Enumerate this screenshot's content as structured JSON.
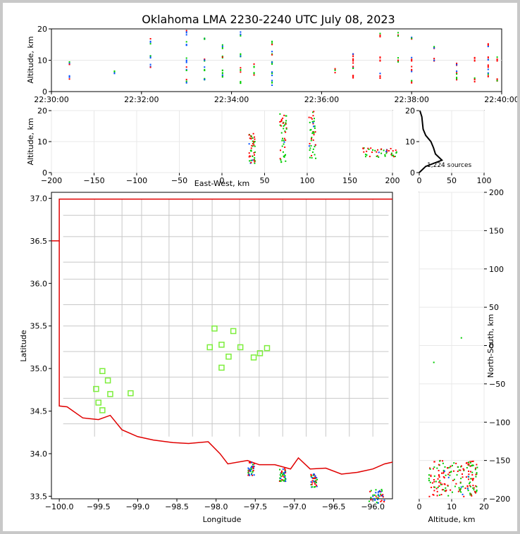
{
  "title": "Oklahoma LMA 2230-2240 UTC July 08, 2023",
  "colors": {
    "state_border": "#e00000",
    "county": "#c8c8c8",
    "station": "#7dee3c",
    "early": "#0050ff",
    "late": "#ff0000",
    "mid": "#00cc00"
  },
  "chart_data": [
    {
      "id": "time-altitude",
      "type": "scatter",
      "ylabel": "Altitude, km",
      "ylim": [
        0,
        20
      ],
      "yticks": [
        "0",
        "10",
        "20"
      ],
      "xticks": [
        "22:30:00",
        "22:32:00",
        "22:34:00",
        "22:36:00",
        "22:38:00",
        "22:40:00"
      ],
      "xlim_minutes": [
        0,
        10
      ],
      "columns": [
        {
          "t": 0.4,
          "alts": [
            5,
            9
          ]
        },
        {
          "t": 1.4,
          "alts": [
            6
          ]
        },
        {
          "t": 2.2,
          "alts": [
            8,
            11,
            16
          ]
        },
        {
          "t": 3.0,
          "alts": [
            3,
            7,
            10,
            15,
            19
          ]
        },
        {
          "t": 3.4,
          "alts": [
            4,
            7,
            10,
            17
          ]
        },
        {
          "t": 3.8,
          "alts": [
            5,
            6,
            11,
            14
          ]
        },
        {
          "t": 4.2,
          "alts": [
            3,
            7,
            12,
            18
          ]
        },
        {
          "t": 4.5,
          "alts": [
            6,
            8
          ]
        },
        {
          "t": 4.9,
          "alts": [
            3,
            6,
            9,
            12,
            16
          ]
        },
        {
          "t": 6.3,
          "alts": [
            7
          ]
        },
        {
          "t": 6.7,
          "alts": [
            5,
            8,
            10,
            12
          ]
        },
        {
          "t": 7.3,
          "alts": [
            5,
            10,
            18
          ]
        },
        {
          "t": 7.7,
          "alts": [
            10,
            18
          ]
        },
        {
          "t": 8.0,
          "alts": [
            3,
            7,
            10,
            17
          ]
        },
        {
          "t": 8.5,
          "alts": [
            10,
            14
          ]
        },
        {
          "t": 9.0,
          "alts": [
            4,
            6,
            9
          ]
        },
        {
          "t": 9.4,
          "alts": [
            4,
            10
          ]
        },
        {
          "t": 9.7,
          "alts": [
            5,
            8,
            11,
            15
          ]
        },
        {
          "t": 9.9,
          "alts": [
            4,
            10
          ]
        }
      ]
    },
    {
      "id": "east-west-altitude",
      "type": "scatter",
      "xlabel": "East-West, km",
      "ylabel": "Altitude, km",
      "xlim": [
        -200,
        200
      ],
      "ylim": [
        0,
        20
      ],
      "xticks": [
        "−200",
        "−150",
        "−100",
        "−50",
        "0",
        "50",
        "100",
        "150",
        "200"
      ],
      "yticks": [
        "0",
        "10",
        "20"
      ],
      "clusters": [
        {
          "x": 35,
          "alt_min": 3,
          "alt_max": 13
        },
        {
          "x": 72,
          "alt_min": 3,
          "alt_max": 19
        },
        {
          "x": 106,
          "alt_min": 4,
          "alt_max": 20
        },
        {
          "x": 185,
          "alt_min": 5,
          "alt_max": 8
        }
      ]
    },
    {
      "id": "altitude-histogram",
      "type": "line",
      "xlim": [
        0,
        100
      ],
      "ylim": [
        0,
        20
      ],
      "xticks": [
        "0",
        "50",
        "100"
      ],
      "yticks": [
        "0",
        "10",
        "20"
      ],
      "annotation": "1,224 sources",
      "profile": [
        [
          0,
          0
        ],
        [
          10,
          2
        ],
        [
          35,
          4
        ],
        [
          25,
          6
        ],
        [
          22,
          8
        ],
        [
          18,
          10
        ],
        [
          10,
          12
        ],
        [
          6,
          14
        ],
        [
          5,
          16
        ],
        [
          4,
          18
        ],
        [
          1,
          20
        ]
      ]
    },
    {
      "id": "plan-view",
      "type": "scatter",
      "xlabel": "Longitude",
      "ylabel": "Latitude",
      "xlim": [
        -100.1,
        -95.75
      ],
      "ylim": [
        33.47,
        37.07
      ],
      "xticks": [
        "−100.0",
        "−99.5",
        "−99.0",
        "−98.5",
        "−98.0",
        "−97.5",
        "−97.0",
        "−96.5",
        "−96.0"
      ],
      "yticks": [
        "33.5",
        "34.0",
        "34.5",
        "35.0",
        "35.5",
        "36.0",
        "36.5",
        "37.0"
      ],
      "stations": [
        [
          -99.45,
          34.97
        ],
        [
          -99.38,
          34.86
        ],
        [
          -99.53,
          34.76
        ],
        [
          -99.35,
          34.7
        ],
        [
          -99.09,
          34.71
        ],
        [
          -99.5,
          34.6
        ],
        [
          -99.45,
          34.51
        ],
        [
          -98.02,
          35.47
        ],
        [
          -97.78,
          35.44
        ],
        [
          -98.08,
          35.25
        ],
        [
          -97.93,
          35.28
        ],
        [
          -97.69,
          35.25
        ],
        [
          -97.35,
          35.24
        ],
        [
          -97.84,
          35.14
        ],
        [
          -97.52,
          35.13
        ],
        [
          -97.44,
          35.18
        ],
        [
          -97.93,
          35.01
        ]
      ],
      "clusters": [
        {
          "lon": -97.55,
          "lat": 33.82
        },
        {
          "lon": -97.15,
          "lat": 33.75
        },
        {
          "lon": -96.75,
          "lat": 33.68
        },
        {
          "lon": -95.95,
          "lat": 33.6
        }
      ]
    },
    {
      "id": "altitude-north-south",
      "type": "scatter",
      "xlabel": "Altitude, km",
      "ylabel": "North-South, km",
      "xlim": [
        0,
        20
      ],
      "ylim": [
        -200,
        200
      ],
      "xticks": [
        "0",
        "10",
        "20"
      ],
      "yticks": [
        "−200",
        "−150",
        "−100",
        "−50",
        "0",
        "50",
        "100",
        "150",
        "200"
      ]
    }
  ]
}
